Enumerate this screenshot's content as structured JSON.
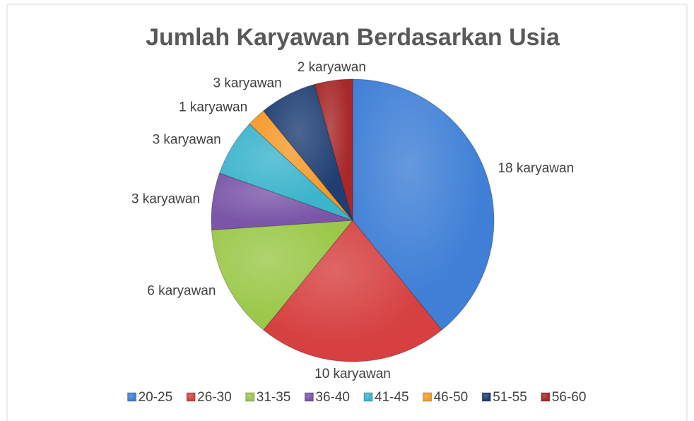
{
  "chart_data": {
    "type": "pie",
    "title": "Jumlah Karyawan Berdasarkan Usia",
    "categories": [
      "20-25",
      "26-30",
      "31-35",
      "36-40",
      "41-45",
      "46-50",
      "51-55",
      "56-60"
    ],
    "values": [
      18,
      10,
      6,
      3,
      3,
      1,
      3,
      2
    ],
    "value_labels": [
      "18 karyawan",
      "10 karyawan",
      "6 karyawan",
      "3 karyawan",
      "3 karyawan",
      "1 karyawan",
      "3 karyawan",
      "2 karyawan"
    ],
    "colors": [
      "#3f7fd6",
      "#d64040",
      "#9bc84a",
      "#7b56a8",
      "#3bb4cc",
      "#f59a2a",
      "#1f3f73",
      "#a82828"
    ],
    "legend": "bottom"
  }
}
